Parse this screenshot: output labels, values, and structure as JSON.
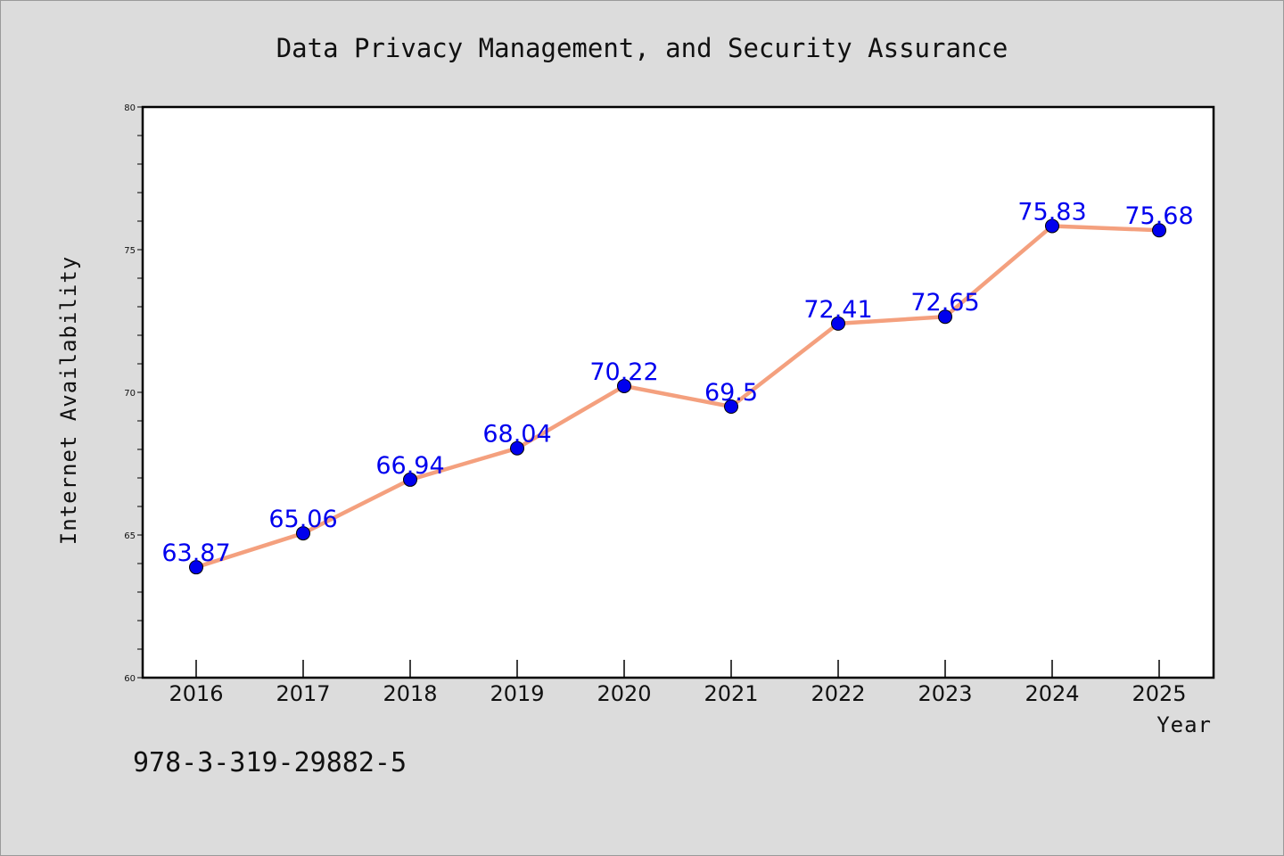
{
  "chart_data": {
    "type": "line",
    "title": "Data Privacy Management, and Security Assurance",
    "xlabel": "Year",
    "ylabel": "Internet Availability",
    "categories": [
      "2016",
      "2017",
      "2018",
      "2019",
      "2020",
      "2021",
      "2022",
      "2023",
      "2024",
      "2025"
    ],
    "series": [
      {
        "values": [
          63.87,
          65.06,
          66.94,
          68.04,
          70.22,
          69.5,
          72.41,
          72.65,
          75.83,
          75.68
        ],
        "labels": [
          "63.87",
          "65.06",
          "66.94",
          "68.04",
          "70.22",
          "69.5",
          "72.41",
          "72.65",
          "75.83",
          "75.68"
        ],
        "line_color": "#f4a07e",
        "marker_color": "#0000ee"
      }
    ],
    "ylim": [
      60,
      80
    ],
    "yticks": [
      "60",
      "65",
      "70",
      "75",
      "80"
    ],
    "grid": false,
    "legend": "none"
  },
  "annotation": {
    "isbn": "978-3-319-29882-5"
  },
  "colors": {
    "background": "#dcdcdc",
    "plot_background": "#ffffff",
    "line": "#f4a07e",
    "marker": "#0000ee",
    "data_label": "#0000ee"
  }
}
